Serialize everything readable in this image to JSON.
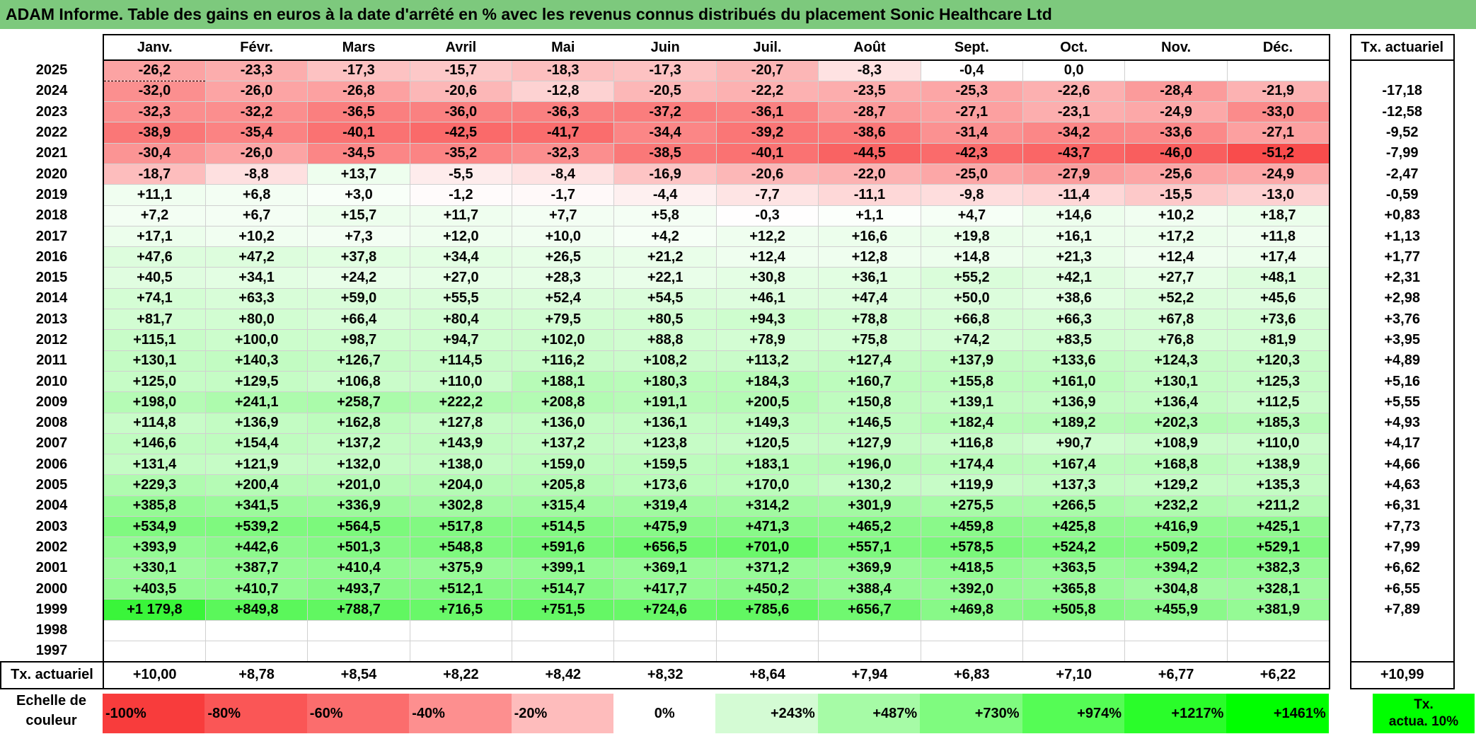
{
  "title": "ADAM Informe. Table des gains en euros à la date d'arrêté en % avec les revenus connus distribués du placement Sonic Healthcare Ltd",
  "months": [
    "Janv.",
    "Févr.",
    "Mars",
    "Avril",
    "Mai",
    "Juin",
    "Juil.",
    "Août",
    "Sept.",
    "Oct.",
    "Nov.",
    "Déc."
  ],
  "actuarial_header": "Tx. actuariel",
  "rows": [
    {
      "year": "2025",
      "cells": [
        "-26,2",
        "-23,3",
        "-17,3",
        "-15,7",
        "-18,3",
        "-17,3",
        "-20,7",
        "-8,3",
        "-0,4",
        "0,0",
        "",
        ""
      ],
      "act": ""
    },
    {
      "year": "2024",
      "cells": [
        "-32,0",
        "-26,0",
        "-26,8",
        "-20,6",
        "-12,8",
        "-20,5",
        "-22,2",
        "-23,5",
        "-25,3",
        "-22,6",
        "-28,4",
        "-21,9"
      ],
      "act": "-17,18"
    },
    {
      "year": "2023",
      "cells": [
        "-32,3",
        "-32,2",
        "-36,5",
        "-36,0",
        "-36,3",
        "-37,2",
        "-36,1",
        "-28,7",
        "-27,1",
        "-23,1",
        "-24,9",
        "-33,0"
      ],
      "act": "-12,58"
    },
    {
      "year": "2022",
      "cells": [
        "-38,9",
        "-35,4",
        "-40,1",
        "-42,5",
        "-41,7",
        "-34,4",
        "-39,2",
        "-38,6",
        "-31,4",
        "-34,2",
        "-33,6",
        "-27,1"
      ],
      "act": "-9,52"
    },
    {
      "year": "2021",
      "cells": [
        "-30,4",
        "-26,0",
        "-34,5",
        "-35,2",
        "-32,3",
        "-38,5",
        "-40,1",
        "-44,5",
        "-42,3",
        "-43,7",
        "-46,0",
        "-51,2"
      ],
      "act": "-7,99"
    },
    {
      "year": "2020",
      "cells": [
        "-18,7",
        "-8,8",
        "+13,7",
        "-5,5",
        "-8,4",
        "-16,9",
        "-20,6",
        "-22,0",
        "-25,0",
        "-27,9",
        "-25,6",
        "-24,9"
      ],
      "act": "-2,47"
    },
    {
      "year": "2019",
      "cells": [
        "+11,1",
        "+6,8",
        "+3,0",
        "-1,2",
        "-1,7",
        "-4,4",
        "-7,7",
        "-11,1",
        "-9,8",
        "-11,4",
        "-15,5",
        "-13,0"
      ],
      "act": "-0,59"
    },
    {
      "year": "2018",
      "cells": [
        "+7,2",
        "+6,7",
        "+15,7",
        "+11,7",
        "+7,7",
        "+5,8",
        "-0,3",
        "+1,1",
        "+4,7",
        "+14,6",
        "+10,2",
        "+18,7"
      ],
      "act": "+0,83"
    },
    {
      "year": "2017",
      "cells": [
        "+17,1",
        "+10,2",
        "+7,3",
        "+12,0",
        "+10,0",
        "+4,2",
        "+12,2",
        "+16,6",
        "+19,8",
        "+16,1",
        "+17,2",
        "+11,8"
      ],
      "act": "+1,13"
    },
    {
      "year": "2016",
      "cells": [
        "+47,6",
        "+47,2",
        "+37,8",
        "+34,4",
        "+26,5",
        "+21,2",
        "+12,4",
        "+12,8",
        "+14,8",
        "+21,3",
        "+12,4",
        "+17,4"
      ],
      "act": "+1,77"
    },
    {
      "year": "2015",
      "cells": [
        "+40,5",
        "+34,1",
        "+24,2",
        "+27,0",
        "+28,3",
        "+22,1",
        "+30,8",
        "+36,1",
        "+55,2",
        "+42,1",
        "+27,7",
        "+48,1"
      ],
      "act": "+2,31"
    },
    {
      "year": "2014",
      "cells": [
        "+74,1",
        "+63,3",
        "+59,0",
        "+55,5",
        "+52,4",
        "+54,5",
        "+46,1",
        "+47,4",
        "+50,0",
        "+38,6",
        "+52,2",
        "+45,6"
      ],
      "act": "+2,98"
    },
    {
      "year": "2013",
      "cells": [
        "+81,7",
        "+80,0",
        "+66,4",
        "+80,4",
        "+79,5",
        "+80,5",
        "+94,3",
        "+78,8",
        "+66,8",
        "+66,3",
        "+67,8",
        "+73,6"
      ],
      "act": "+3,76"
    },
    {
      "year": "2012",
      "cells": [
        "+115,1",
        "+100,0",
        "+98,7",
        "+94,7",
        "+102,0",
        "+88,8",
        "+78,9",
        "+75,8",
        "+74,2",
        "+83,5",
        "+76,8",
        "+81,9"
      ],
      "act": "+3,95"
    },
    {
      "year": "2011",
      "cells": [
        "+130,1",
        "+140,3",
        "+126,7",
        "+114,5",
        "+116,2",
        "+108,2",
        "+113,2",
        "+127,4",
        "+137,9",
        "+133,6",
        "+124,3",
        "+120,3"
      ],
      "act": "+4,89"
    },
    {
      "year": "2010",
      "cells": [
        "+125,0",
        "+129,5",
        "+106,8",
        "+110,0",
        "+188,1",
        "+180,3",
        "+184,3",
        "+160,7",
        "+155,8",
        "+161,0",
        "+130,1",
        "+125,3"
      ],
      "act": "+5,16"
    },
    {
      "year": "2009",
      "cells": [
        "+198,0",
        "+241,1",
        "+258,7",
        "+222,2",
        "+208,8",
        "+191,1",
        "+200,5",
        "+150,8",
        "+139,1",
        "+136,9",
        "+136,4",
        "+112,5"
      ],
      "act": "+5,55"
    },
    {
      "year": "2008",
      "cells": [
        "+114,8",
        "+136,9",
        "+162,8",
        "+127,8",
        "+136,0",
        "+136,1",
        "+149,3",
        "+146,5",
        "+182,4",
        "+189,2",
        "+202,3",
        "+185,3"
      ],
      "act": "+4,93"
    },
    {
      "year": "2007",
      "cells": [
        "+146,6",
        "+154,4",
        "+137,2",
        "+143,9",
        "+137,2",
        "+123,8",
        "+120,5",
        "+127,9",
        "+116,8",
        "+90,7",
        "+108,9",
        "+110,0"
      ],
      "act": "+4,17"
    },
    {
      "year": "2006",
      "cells": [
        "+131,4",
        "+121,9",
        "+132,0",
        "+138,0",
        "+159,0",
        "+159,5",
        "+183,1",
        "+196,0",
        "+174,4",
        "+167,4",
        "+168,8",
        "+138,9"
      ],
      "act": "+4,66"
    },
    {
      "year": "2005",
      "cells": [
        "+229,3",
        "+200,4",
        "+201,0",
        "+204,0",
        "+205,8",
        "+173,6",
        "+170,0",
        "+130,2",
        "+119,9",
        "+137,3",
        "+129,2",
        "+135,3"
      ],
      "act": "+4,63"
    },
    {
      "year": "2004",
      "cells": [
        "+385,8",
        "+341,5",
        "+336,9",
        "+302,8",
        "+315,4",
        "+319,4",
        "+314,2",
        "+301,9",
        "+275,5",
        "+266,5",
        "+232,2",
        "+211,2"
      ],
      "act": "+6,31"
    },
    {
      "year": "2003",
      "cells": [
        "+534,9",
        "+539,2",
        "+564,5",
        "+517,8",
        "+514,5",
        "+475,9",
        "+471,3",
        "+465,2",
        "+459,8",
        "+425,8",
        "+416,9",
        "+425,1"
      ],
      "act": "+7,73"
    },
    {
      "year": "2002",
      "cells": [
        "+393,9",
        "+442,6",
        "+501,3",
        "+548,8",
        "+591,6",
        "+656,5",
        "+701,0",
        "+557,1",
        "+578,5",
        "+524,2",
        "+509,2",
        "+529,1"
      ],
      "act": "+7,99"
    },
    {
      "year": "2001",
      "cells": [
        "+330,1",
        "+387,7",
        "+410,4",
        "+375,9",
        "+399,1",
        "+369,1",
        "+371,2",
        "+369,9",
        "+418,5",
        "+363,5",
        "+394,2",
        "+382,3"
      ],
      "act": "+6,62"
    },
    {
      "year": "2000",
      "cells": [
        "+403,5",
        "+410,7",
        "+493,7",
        "+512,1",
        "+514,7",
        "+417,7",
        "+450,2",
        "+388,4",
        "+392,0",
        "+365,8",
        "+304,8",
        "+328,1"
      ],
      "act": "+6,55"
    },
    {
      "year": "1999",
      "cells": [
        "+1 179,8",
        "+849,8",
        "+788,7",
        "+716,5",
        "+751,5",
        "+724,6",
        "+785,6",
        "+656,7",
        "+469,8",
        "+505,8",
        "+455,9",
        "+381,9"
      ],
      "act": "+7,89"
    },
    {
      "year": "1998",
      "cells": [
        "",
        "",
        "",
        "",
        "",
        "",
        "",
        "",
        "",
        "",
        "",
        ""
      ],
      "act": ""
    },
    {
      "year": "1997",
      "cells": [
        "",
        "",
        "",
        "",
        "",
        "",
        "",
        "",
        "",
        "",
        "",
        ""
      ],
      "act": ""
    }
  ],
  "totals": {
    "label": "Tx. actuariel",
    "cells": [
      "+10,00",
      "+8,78",
      "+8,54",
      "+8,22",
      "+8,42",
      "+8,32",
      "+8,64",
      "+7,94",
      "+6,83",
      "+7,10",
      "+6,77",
      "+6,22"
    ],
    "act": "+10,99"
  },
  "scale": {
    "label_line1": "Echelle de",
    "label_line2": "couleur",
    "cells": [
      "-100%",
      "-80%",
      "-60%",
      "-40%",
      "-20%",
      "0%",
      "+243%",
      "+487%",
      "+730%",
      "+974%",
      "+1217%",
      "+1461%"
    ],
    "act_line1": "Tx.",
    "act_line2": "actua. 10%"
  },
  "colors": {
    "title_bg": "#7dc97d",
    "neg_max": "#f83c3c",
    "pos_max": "#00ff00",
    "neutral": "#ffffff",
    "scale_colors": [
      "#f83c3c",
      "#fa5656",
      "#fb6d6d",
      "#fd8f8f",
      "#febcbc",
      "#ffffff",
      "#d4fbd4",
      "#a6fba6",
      "#7ffb7f",
      "#55fc55",
      "#2afd2a",
      "#00ff00"
    ]
  }
}
